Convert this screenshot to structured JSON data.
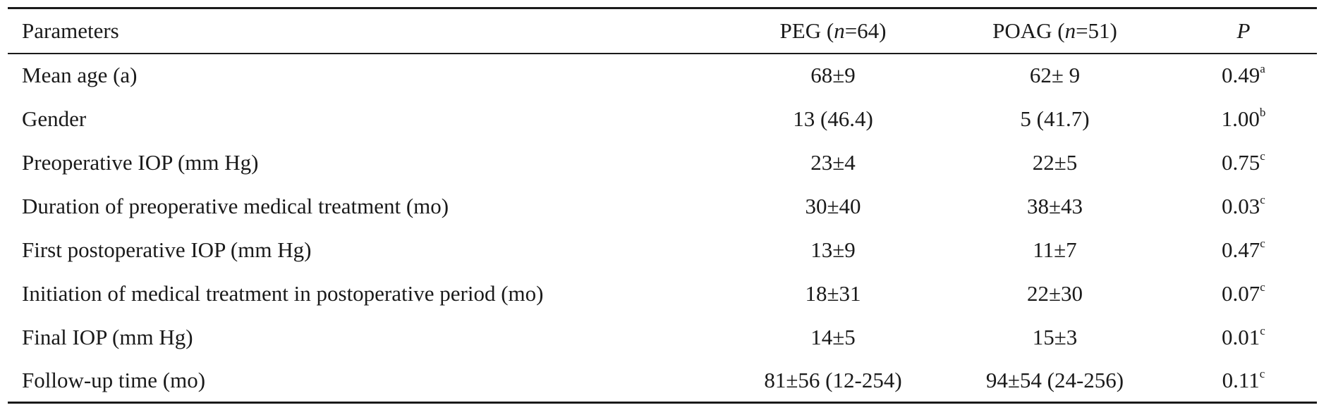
{
  "table": {
    "headers": {
      "parameters": "Parameters",
      "peg": {
        "name": "PEG",
        "open": "(",
        "n": "n",
        "eq": "=64)"
      },
      "poag": {
        "name": "POAG",
        "open": "(",
        "n": "n",
        "eq": "=51)"
      },
      "p": "P"
    },
    "rows": [
      {
        "parameter": "Mean age (a)",
        "peg": "68±9",
        "poag": "62± 9",
        "p": "0.49",
        "sup": "a"
      },
      {
        "parameter": "Gender",
        "peg": "13 (46.4)",
        "poag": "5 (41.7)",
        "p": "1.00",
        "sup": "b"
      },
      {
        "parameter": "Preoperative IOP (mm Hg)",
        "peg": "23±4",
        "poag": "22±5",
        "p": "0.75",
        "sup": "c"
      },
      {
        "parameter": "Duration of preoperative medical treatment (mo)",
        "peg": "30±40",
        "poag": "38±43",
        "p": "0.03",
        "sup": "c"
      },
      {
        "parameter": "First postoperative IOP (mm Hg)",
        "peg": "13±9",
        "poag": "11±7",
        "p": "0.47",
        "sup": "c"
      },
      {
        "parameter": "Initiation of medical treatment in postoperative period (mo)",
        "peg": "18±31",
        "poag": "22±30",
        "p": "0.07",
        "sup": "c"
      },
      {
        "parameter": "Final IOP (mm Hg)",
        "peg": "14±5",
        "poag": "15±3",
        "p": "0.01",
        "sup": "c"
      },
      {
        "parameter": "Follow-up time (mo)",
        "peg": "81±56 (12-254)",
        "poag": "94±54 (24-256)",
        "p": "0.11",
        "sup": "c"
      }
    ]
  }
}
